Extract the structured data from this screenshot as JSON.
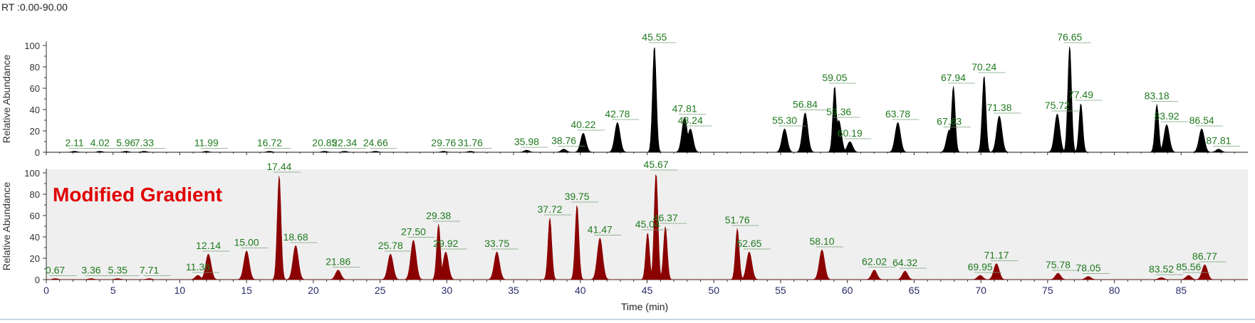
{
  "header": {
    "rt_range": "RT :0.00-90.00"
  },
  "chart_data": [
    {
      "type": "area",
      "ylabel": "Relative Abundance",
      "ylim": [
        0,
        100
      ],
      "yticks": [
        "0",
        "20",
        "40",
        "60",
        "80",
        "100"
      ],
      "color": "#000000",
      "background": "#ffffff",
      "peaks": [
        {
          "label": "2.11",
          "rt": 2.11,
          "h": 1
        },
        {
          "label": "4.02",
          "rt": 4.02,
          "h": 1
        },
        {
          "label": "5.96",
          "rt": 5.96,
          "h": 1
        },
        {
          "label": "7.33",
          "rt": 7.33,
          "h": 1
        },
        {
          "label": "11.99",
          "rt": 11.99,
          "h": 1
        },
        {
          "label": "16.72",
          "rt": 16.72,
          "h": 1
        },
        {
          "label": "20.85",
          "rt": 20.85,
          "h": 1
        },
        {
          "label": "22.34",
          "rt": 22.34,
          "h": 1
        },
        {
          "label": "24.66",
          "rt": 24.66,
          "h": 1
        },
        {
          "label": "29.76",
          "rt": 29.76,
          "h": 1
        },
        {
          "label": "31.76",
          "rt": 31.76,
          "h": 1
        },
        {
          "label": "35.98",
          "rt": 35.98,
          "h": 2
        },
        {
          "label": "38.76",
          "rt": 38.76,
          "h": 3
        },
        {
          "label": "40.22",
          "rt": 40.22,
          "h": 18
        },
        {
          "label": "42.78",
          "rt": 42.78,
          "h": 28
        },
        {
          "label": "45.55",
          "rt": 45.55,
          "h": 100
        },
        {
          "label": "47.81",
          "rt": 47.81,
          "h": 33
        },
        {
          "label": "48.24",
          "rt": 48.24,
          "h": 22
        },
        {
          "label": "55.30",
          "rt": 55.3,
          "h": 22
        },
        {
          "label": "56.84",
          "rt": 56.84,
          "h": 37
        },
        {
          "label": "59.05",
          "rt": 59.05,
          "h": 62
        },
        {
          "label": "59.36",
          "rt": 59.36,
          "h": 30
        },
        {
          "label": "60.19",
          "rt": 60.19,
          "h": 10
        },
        {
          "label": "63.78",
          "rt": 63.78,
          "h": 28
        },
        {
          "label": "67.63",
          "rt": 67.63,
          "h": 21
        },
        {
          "label": "67.94",
          "rt": 67.94,
          "h": 62
        },
        {
          "label": "70.24",
          "rt": 70.24,
          "h": 72
        },
        {
          "label": "71.38",
          "rt": 71.38,
          "h": 34
        },
        {
          "label": "75.72",
          "rt": 75.72,
          "h": 36
        },
        {
          "label": "76.65",
          "rt": 76.65,
          "h": 100
        },
        {
          "label": "77.49",
          "rt": 77.49,
          "h": 46
        },
        {
          "label": "83.18",
          "rt": 83.18,
          "h": 45
        },
        {
          "label": "83.92",
          "rt": 83.92,
          "h": 26
        },
        {
          "label": "86.54",
          "rt": 86.54,
          "h": 22
        },
        {
          "label": "87.81",
          "rt": 87.81,
          "h": 3
        }
      ]
    },
    {
      "type": "area",
      "ylabel": "Relative Abundance",
      "xlabel": "Time (min)",
      "xlim": [
        0,
        90
      ],
      "ylim": [
        0,
        100
      ],
      "xticks": [
        "0",
        "5",
        "10",
        "15",
        "20",
        "25",
        "30",
        "35",
        "40",
        "45",
        "50",
        "55",
        "60",
        "65",
        "70",
        "75",
        "80",
        "85"
      ],
      "yticks": [
        "0",
        "20",
        "40",
        "60",
        "80",
        "100"
      ],
      "color": "#8b0000",
      "background": "#efefef",
      "annotation": "Modified Gradient",
      "annotation_color": "#e00000",
      "peaks": [
        {
          "label": "0.67",
          "rt": 0.67,
          "h": 1
        },
        {
          "label": "3.36",
          "rt": 3.36,
          "h": 1
        },
        {
          "label": "5.35",
          "rt": 5.35,
          "h": 1
        },
        {
          "label": "7.71",
          "rt": 7.71,
          "h": 1
        },
        {
          "label": "11.36",
          "rt": 11.36,
          "h": 4
        },
        {
          "label": "12.14",
          "rt": 12.14,
          "h": 24
        },
        {
          "label": "15.00",
          "rt": 15.0,
          "h": 27
        },
        {
          "label": "17.44",
          "rt": 17.44,
          "h": 98
        },
        {
          "label": "18.68",
          "rt": 18.68,
          "h": 32
        },
        {
          "label": "21.86",
          "rt": 21.86,
          "h": 9
        },
        {
          "label": "25.78",
          "rt": 25.78,
          "h": 24
        },
        {
          "label": "27.50",
          "rt": 27.5,
          "h": 37
        },
        {
          "label": "29.38",
          "rt": 29.38,
          "h": 52
        },
        {
          "label": "29.92",
          "rt": 29.92,
          "h": 26
        },
        {
          "label": "33.75",
          "rt": 33.75,
          "h": 26
        },
        {
          "label": "37.72",
          "rt": 37.72,
          "h": 58
        },
        {
          "label": "39.75",
          "rt": 39.75,
          "h": 70
        },
        {
          "label": "41.47",
          "rt": 41.47,
          "h": 39
        },
        {
          "label": "45.04",
          "rt": 45.04,
          "h": 44
        },
        {
          "label": "45.67",
          "rt": 45.67,
          "h": 100
        },
        {
          "label": "46.37",
          "rt": 46.37,
          "h": 50
        },
        {
          "label": "51.76",
          "rt": 51.76,
          "h": 48
        },
        {
          "label": "52.65",
          "rt": 52.65,
          "h": 26
        },
        {
          "label": "58.10",
          "rt": 58.1,
          "h": 28
        },
        {
          "label": "62.02",
          "rt": 62.02,
          "h": 9
        },
        {
          "label": "64.32",
          "rt": 64.32,
          "h": 8
        },
        {
          "label": "69.95",
          "rt": 69.95,
          "h": 4
        },
        {
          "label": "71.17",
          "rt": 71.17,
          "h": 15
        },
        {
          "label": "75.78",
          "rt": 75.78,
          "h": 6
        },
        {
          "label": "78.05",
          "rt": 78.05,
          "h": 3
        },
        {
          "label": "83.52",
          "rt": 83.52,
          "h": 2
        },
        {
          "label": "85.56",
          "rt": 85.56,
          "h": 4
        },
        {
          "label": "86.77",
          "rt": 86.77,
          "h": 14
        }
      ]
    }
  ]
}
